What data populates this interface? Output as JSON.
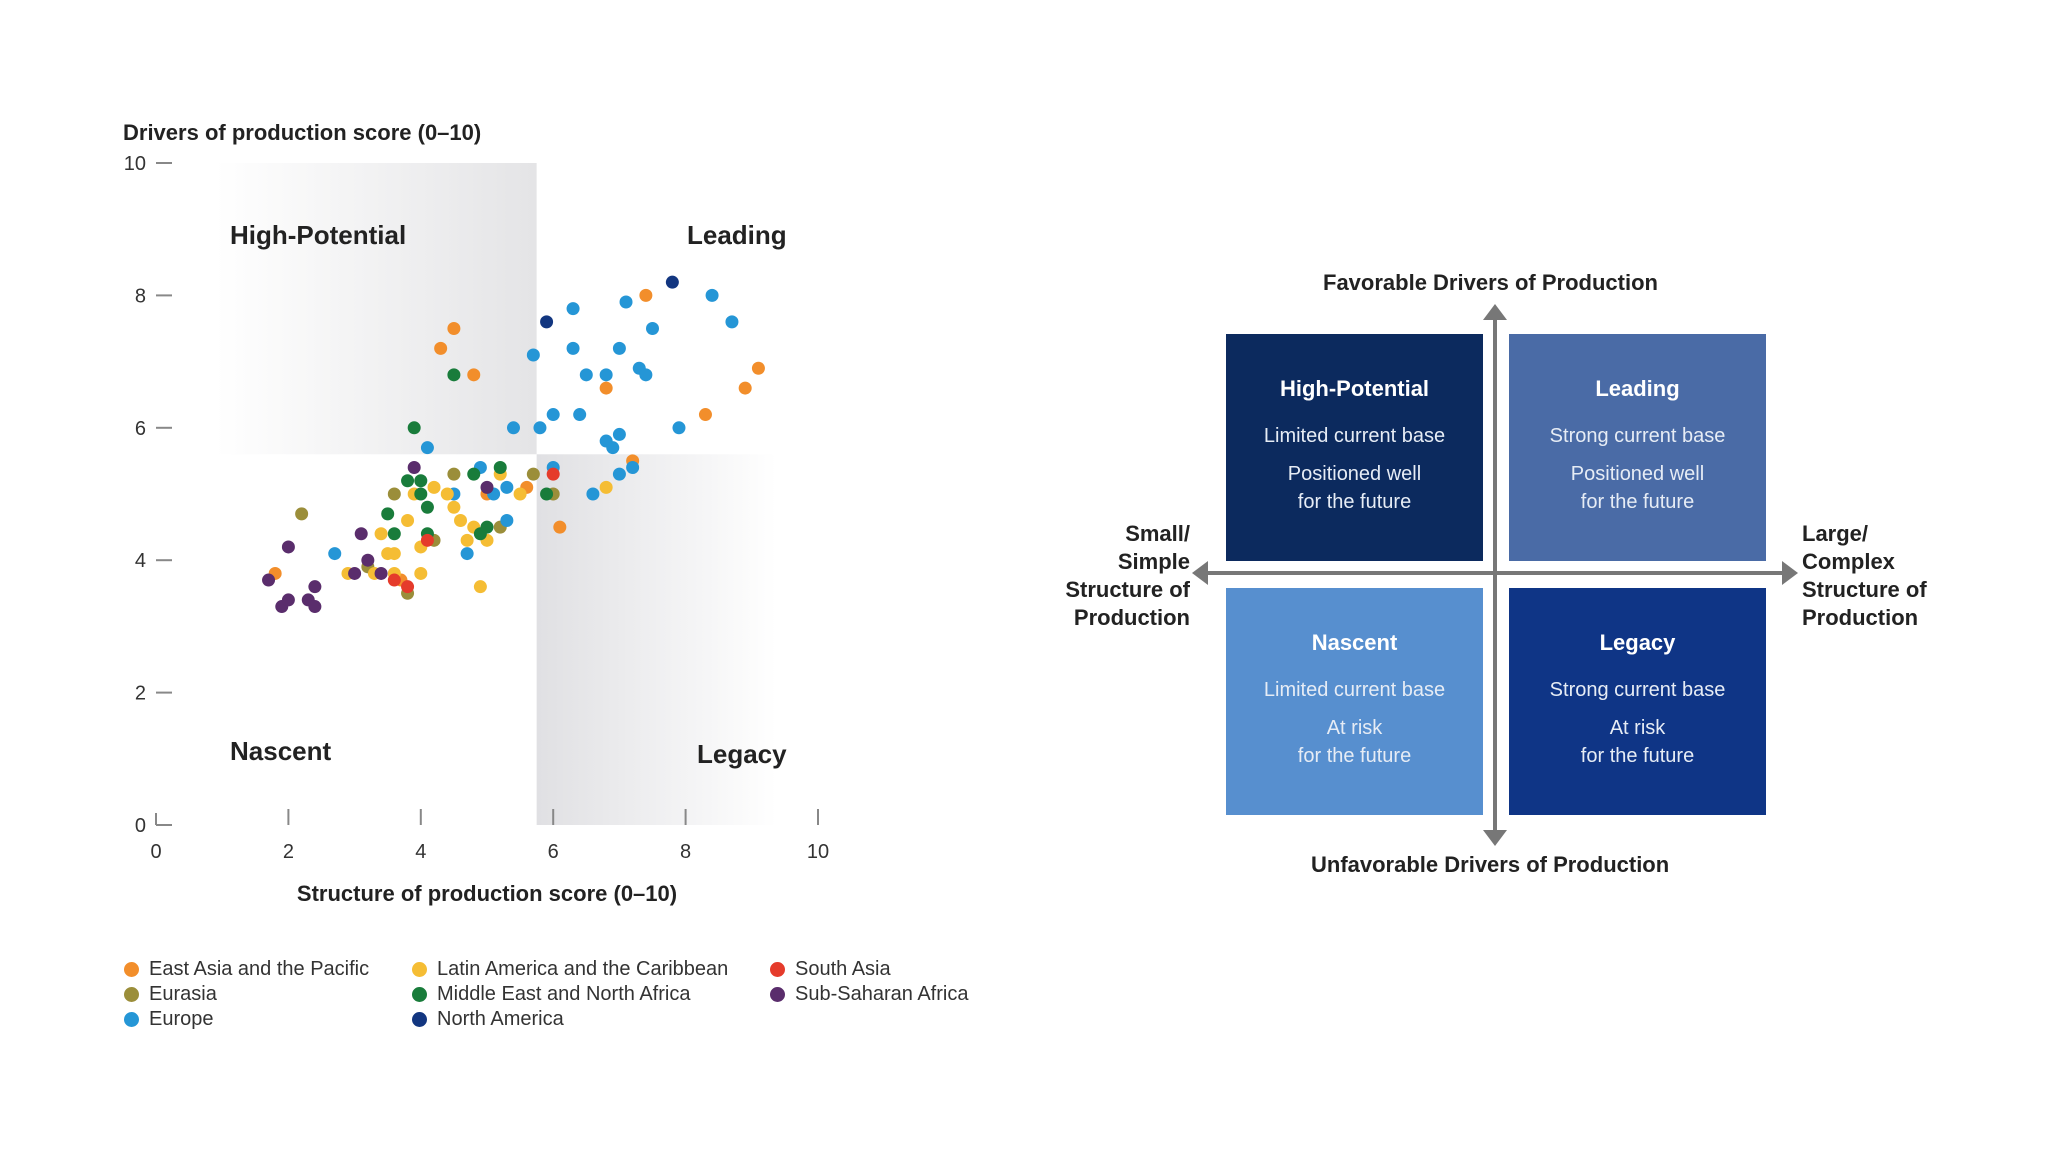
{
  "chart_data": {
    "type": "scatter",
    "ylabel": "Drivers of production score (0–10)",
    "xlabel": "Structure of production score (0–10)",
    "xlim": [
      0,
      10
    ],
    "ylim": [
      0,
      10
    ],
    "x_ticks": [
      "0",
      "2",
      "4",
      "6",
      "8",
      "10"
    ],
    "y_ticks": [
      "0",
      "2",
      "4",
      "6",
      "8",
      "10"
    ],
    "threshold_x": 5.75,
    "threshold_y": 5.6,
    "quadrant_labels": {
      "top_left": "High-Potential",
      "top_right": "Leading",
      "bottom_left": "Nascent",
      "bottom_right": "Legacy"
    },
    "series": [
      {
        "name": "East Asia and the Pacific",
        "color": "#f28e2b",
        "points": [
          [
            1.8,
            3.8
          ],
          [
            4.3,
            7.2
          ],
          [
            4.5,
            7.5
          ],
          [
            4.8,
            6.8
          ],
          [
            5.0,
            5.0
          ],
          [
            5.6,
            5.1
          ],
          [
            6.1,
            4.5
          ],
          [
            6.8,
            6.6
          ],
          [
            7.2,
            5.5
          ],
          [
            7.4,
            8.0
          ],
          [
            8.3,
            6.2
          ],
          [
            8.9,
            6.6
          ],
          [
            9.1,
            6.9
          ],
          [
            3.7,
            3.7
          ]
        ]
      },
      {
        "name": "Eurasia",
        "color": "#9b8e3a",
        "points": [
          [
            2.2,
            4.7
          ],
          [
            3.2,
            3.9
          ],
          [
            3.6,
            5.0
          ],
          [
            3.8,
            3.5
          ],
          [
            4.2,
            4.3
          ],
          [
            4.5,
            5.3
          ],
          [
            5.2,
            4.5
          ],
          [
            5.7,
            5.3
          ],
          [
            6.0,
            5.0
          ]
        ]
      },
      {
        "name": "Europe",
        "color": "#2596d6",
        "points": [
          [
            2.7,
            4.1
          ],
          [
            4.1,
            5.7
          ],
          [
            4.5,
            5.0
          ],
          [
            4.7,
            4.1
          ],
          [
            4.9,
            5.4
          ],
          [
            5.1,
            5.0
          ],
          [
            5.3,
            4.6
          ],
          [
            5.3,
            5.1
          ],
          [
            5.4,
            6.0
          ],
          [
            5.7,
            7.1
          ],
          [
            5.8,
            6.0
          ],
          [
            6.0,
            5.4
          ],
          [
            6.0,
            6.2
          ],
          [
            6.3,
            7.2
          ],
          [
            6.3,
            7.8
          ],
          [
            6.4,
            6.2
          ],
          [
            6.5,
            6.8
          ],
          [
            6.6,
            5.0
          ],
          [
            6.8,
            5.8
          ],
          [
            6.8,
            6.8
          ],
          [
            6.9,
            5.7
          ],
          [
            7.0,
            5.3
          ],
          [
            7.0,
            7.2
          ],
          [
            7.1,
            7.9
          ],
          [
            7.2,
            5.4
          ],
          [
            7.3,
            6.9
          ],
          [
            7.4,
            6.8
          ],
          [
            7.5,
            7.5
          ],
          [
            7.9,
            6.0
          ],
          [
            8.4,
            8.0
          ],
          [
            8.7,
            7.6
          ],
          [
            7.0,
            5.9
          ]
        ]
      },
      {
        "name": "Latin America and the Caribbean",
        "color": "#f5bd34",
        "points": [
          [
            2.9,
            3.8
          ],
          [
            3.3,
            3.8
          ],
          [
            3.4,
            4.4
          ],
          [
            3.5,
            4.1
          ],
          [
            3.6,
            3.8
          ],
          [
            3.8,
            4.6
          ],
          [
            3.9,
            5.0
          ],
          [
            4.0,
            4.2
          ],
          [
            4.0,
            3.8
          ],
          [
            4.2,
            5.1
          ],
          [
            4.4,
            5.0
          ],
          [
            4.5,
            4.8
          ],
          [
            4.6,
            4.6
          ],
          [
            4.7,
            4.3
          ],
          [
            4.9,
            3.6
          ],
          [
            5.0,
            4.3
          ],
          [
            5.2,
            5.3
          ],
          [
            5.5,
            5.0
          ],
          [
            6.8,
            5.1
          ],
          [
            3.6,
            4.1
          ],
          [
            4.8,
            4.5
          ]
        ]
      },
      {
        "name": "Middle East and North Africa",
        "color": "#197c3b",
        "points": [
          [
            3.5,
            4.7
          ],
          [
            3.6,
            4.4
          ],
          [
            3.8,
            5.2
          ],
          [
            4.0,
            5.0
          ],
          [
            4.0,
            5.2
          ],
          [
            4.1,
            4.8
          ],
          [
            4.1,
            4.4
          ],
          [
            4.5,
            6.8
          ],
          [
            4.8,
            5.3
          ],
          [
            4.9,
            4.4
          ],
          [
            5.0,
            4.5
          ],
          [
            5.2,
            5.4
          ],
          [
            5.9,
            5.0
          ],
          [
            3.9,
            6.0
          ]
        ]
      },
      {
        "name": "North America",
        "color": "#123680",
        "points": [
          [
            5.9,
            7.6
          ],
          [
            7.8,
            8.2
          ]
        ]
      },
      {
        "name": "South Asia",
        "color": "#e53b2b",
        "points": [
          [
            3.6,
            3.7
          ],
          [
            3.8,
            3.6
          ],
          [
            4.1,
            4.3
          ],
          [
            6.0,
            5.3
          ]
        ]
      },
      {
        "name": "Sub-Saharan Africa",
        "color": "#5a2d6c",
        "points": [
          [
            1.7,
            3.7
          ],
          [
            1.9,
            3.3
          ],
          [
            2.0,
            3.4
          ],
          [
            2.0,
            4.2
          ],
          [
            2.3,
            3.4
          ],
          [
            2.4,
            3.3
          ],
          [
            2.4,
            3.6
          ],
          [
            3.0,
            3.8
          ],
          [
            3.1,
            4.4
          ],
          [
            3.2,
            4.0
          ],
          [
            3.4,
            3.8
          ],
          [
            3.9,
            5.4
          ],
          [
            5.0,
            5.1
          ]
        ]
      }
    ]
  },
  "legend": {
    "items": [
      {
        "label": "East Asia and the Pacific",
        "color": "#f28e2b"
      },
      {
        "label": "Eurasia",
        "color": "#9b8e3a"
      },
      {
        "label": "Europe",
        "color": "#2596d6"
      },
      {
        "label": "Latin America and the Caribbean",
        "color": "#f5bd34"
      },
      {
        "label": "Middle East and North Africa",
        "color": "#197c3b"
      },
      {
        "label": "North America",
        "color": "#123680"
      },
      {
        "label": "South Asia",
        "color": "#e53b2b"
      },
      {
        "label": "Sub-Saharan Africa",
        "color": "#5a2d6c"
      }
    ]
  },
  "framework": {
    "top_label": "Favorable Drivers of Production",
    "bottom_label": "Unfavorable Drivers of Production",
    "left_label": [
      "Small/",
      "Simple",
      "Structure of",
      "Production"
    ],
    "right_label": [
      "Large/",
      "Complex",
      "Structure of",
      "Production"
    ],
    "quadrants": {
      "high_potential": {
        "title": "High-Potential",
        "line1": "Limited current base",
        "line2": "Positioned well",
        "line3": "for the future",
        "color": "#0c2a5e"
      },
      "leading": {
        "title": "Leading",
        "line1": "Strong current base",
        "line2": "Positioned well",
        "line3": "for the future",
        "color": "#4a6ba6"
      },
      "nascent": {
        "title": "Nascent",
        "line1": "Limited current base",
        "line2": "At risk",
        "line3": "for the future",
        "color": "#578fcf"
      },
      "legacy": {
        "title": "Legacy",
        "line1": "Strong current base",
        "line2": "At risk",
        "line3": "for the future",
        "color": "#0f3586"
      }
    },
    "arrow_color": "#777777"
  }
}
